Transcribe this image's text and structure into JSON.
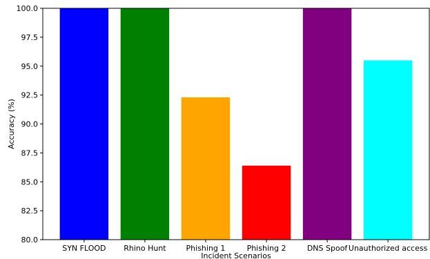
{
  "chart_data": {
    "type": "bar",
    "title": "",
    "xlabel": "Incident Scenarios",
    "ylabel": "Accuracy (%)",
    "ylim": [
      80.0,
      100.0
    ],
    "yticks": [
      "80.0",
      "82.5",
      "85.0",
      "87.5",
      "90.0",
      "92.5",
      "95.0",
      "97.5",
      "100.0"
    ],
    "categories": [
      "SYN FLOOD",
      "Rhino Hunt",
      "Phishing 1",
      "Phishing 2",
      "DNS Spoof",
      "Unauthorized access"
    ],
    "values": [
      100.0,
      100.0,
      92.3,
      86.4,
      100.0,
      95.5
    ],
    "colors": [
      "#0000ff",
      "#008000",
      "#ffa500",
      "#ff0000",
      "#800080",
      "#00ffff"
    ],
    "grid": false,
    "legend": "none"
  }
}
